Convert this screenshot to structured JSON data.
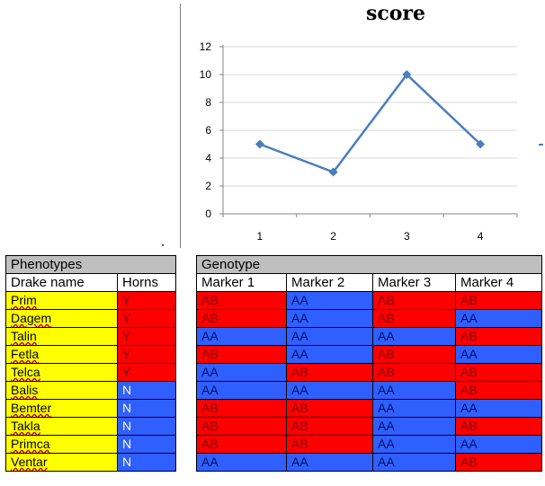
{
  "chart_data": {
    "type": "line",
    "title": "score",
    "x": [
      1,
      2,
      3,
      4
    ],
    "categories": [
      "1",
      "2",
      "3",
      "4"
    ],
    "series": [
      {
        "values": [
          5,
          3,
          10,
          5
        ],
        "color": "#4a7ebb"
      }
    ],
    "yticks": [
      "0",
      "2",
      "4",
      "6",
      "8",
      "10",
      "12"
    ],
    "ylim": [
      0,
      12
    ],
    "grid": "horizontal",
    "xlabel": "",
    "ylabel": ""
  },
  "phenotypes": {
    "header": "Phenotypes",
    "col_name": "Drake name",
    "col_horns": "Horns",
    "rows": [
      {
        "name": "Prim",
        "horns": "Y"
      },
      {
        "name": "Dagem",
        "horns": "Y"
      },
      {
        "name": "Talin",
        "horns": "Y"
      },
      {
        "name": "Fetla",
        "horns": "Y"
      },
      {
        "name": "Telca",
        "horns": "Y"
      },
      {
        "name": "Balis",
        "horns": "N"
      },
      {
        "name": "Bemter",
        "horns": "N"
      },
      {
        "name": "Takla",
        "horns": "N"
      },
      {
        "name": "Primca",
        "horns": "N"
      },
      {
        "name": "Ventar",
        "horns": "N"
      }
    ]
  },
  "genotype": {
    "header": "Genotype",
    "markers": [
      "Marker 1",
      "Marker 2",
      "Marker 3",
      "Marker 4"
    ],
    "rows": [
      [
        "AB",
        "AA",
        "AB",
        "AB"
      ],
      [
        "AB",
        "AA",
        "AB",
        "AA"
      ],
      [
        "AA",
        "AA",
        "AA",
        "AB"
      ],
      [
        "AB",
        "AA",
        "AB",
        "AA"
      ],
      [
        "AA",
        "AB",
        "AB",
        "AB"
      ],
      [
        "AA",
        "AA",
        "AA",
        "AB"
      ],
      [
        "AB",
        "AB",
        "AA",
        "AA"
      ],
      [
        "AB",
        "AB",
        "AA",
        "AB"
      ],
      [
        "AB",
        "AB",
        "AA",
        "AA"
      ],
      [
        "AA",
        "AA",
        "AA",
        "AB"
      ]
    ]
  },
  "colors": {
    "yellow": "#ffff00",
    "red": "#ff0000",
    "blue": "#2f5fff",
    "header_gray": "#bfbfbf",
    "line": "#4a7ebb"
  }
}
